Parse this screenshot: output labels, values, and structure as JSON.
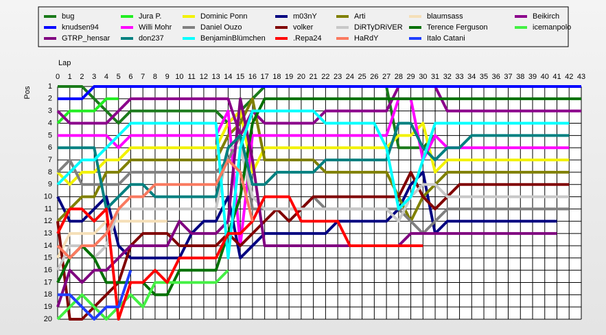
{
  "chart_data": {
    "type": "line",
    "x_label": "Lap",
    "y_label": "Pos",
    "x": [
      0,
      1,
      2,
      3,
      4,
      5,
      6,
      7,
      8,
      9,
      10,
      11,
      12,
      13,
      14,
      15,
      16,
      17,
      18,
      19,
      20,
      21,
      22,
      23,
      24,
      25,
      26,
      27,
      28,
      29,
      30,
      31,
      32,
      33,
      34,
      35,
      36,
      37,
      38,
      39,
      40,
      41,
      42,
      43
    ],
    "xlim": [
      0,
      43
    ],
    "xticks": [
      0,
      1,
      2,
      3,
      4,
      5,
      6,
      7,
      8,
      9,
      10,
      11,
      12,
      13,
      14,
      15,
      16,
      17,
      18,
      19,
      20,
      21,
      22,
      23,
      24,
      25,
      26,
      27,
      28,
      29,
      30,
      31,
      32,
      33,
      34,
      35,
      36,
      37,
      38,
      39,
      40,
      41,
      42,
      43
    ],
    "ylim": [
      1,
      20
    ],
    "yticks": [
      1,
      2,
      3,
      4,
      5,
      6,
      7,
      8,
      9,
      10,
      11,
      12,
      13,
      14,
      15,
      16,
      17,
      18,
      19,
      20
    ],
    "y_inverted": true,
    "grid": true,
    "series": [
      {
        "name": "bug",
        "color": "#1a7a1a",
        "values": [
          1,
          1,
          1,
          2,
          3,
          4,
          3,
          3,
          3,
          3,
          3,
          3,
          3,
          3,
          4,
          3,
          2,
          1,
          1,
          1,
          1,
          1,
          1,
          1,
          1,
          1,
          1,
          1,
          6,
          6,
          6,
          5,
          null,
          null,
          null,
          null,
          null,
          null,
          null,
          null,
          null,
          null,
          null,
          null
        ]
      },
      {
        "name": "Jura P.",
        "color": "#22ee22",
        "values": [
          4,
          3,
          3,
          3,
          2,
          2,
          null,
          null,
          null,
          null,
          null,
          null,
          null,
          null,
          null,
          null,
          null,
          null,
          null,
          null,
          null,
          null,
          null,
          null,
          null,
          null,
          null,
          null,
          null,
          null,
          null,
          null,
          null,
          null,
          null,
          null,
          null,
          null,
          null,
          null,
          null,
          null,
          null,
          null
        ]
      },
      {
        "name": "Dominic Ponn",
        "color": "#f2f200",
        "values": [
          8,
          9,
          8,
          8,
          7,
          7,
          6,
          6,
          6,
          6,
          6,
          6,
          6,
          6,
          4,
          3,
          8,
          6,
          6,
          6,
          6,
          6,
          6,
          6,
          6,
          6,
          6,
          6,
          5,
          5,
          4,
          8,
          7,
          7,
          7,
          7,
          7,
          7,
          7,
          7,
          7,
          7,
          7,
          null
        ]
      },
      {
        "name": "m03nY",
        "color": "#000080",
        "values": [
          10,
          12,
          12,
          11,
          10,
          14,
          15,
          15,
          15,
          15,
          15,
          13,
          12,
          12,
          10,
          15,
          14,
          13,
          13,
          13,
          13,
          13,
          13,
          12,
          12,
          12,
          12,
          12,
          11,
          9,
          8,
          13,
          12,
          12,
          12,
          12,
          12,
          12,
          12,
          12,
          12,
          12,
          null,
          null
        ]
      },
      {
        "name": "Arti",
        "color": "#808000",
        "values": [
          12,
          11,
          10,
          10,
          8,
          8,
          7,
          7,
          7,
          7,
          7,
          7,
          7,
          7,
          5,
          4,
          2,
          7,
          7,
          7,
          7,
          7,
          8,
          8,
          8,
          8,
          8,
          8,
          10,
          12,
          10,
          9,
          8,
          8,
          8,
          8,
          8,
          8,
          8,
          8,
          8,
          8,
          8,
          null
        ]
      },
      {
        "name": "blaumsass",
        "color": "#f5dfb8",
        "values": [
          15,
          13,
          13,
          13,
          12,
          12,
          12,
          12,
          12,
          12,
          null,
          null,
          null,
          null,
          null,
          null,
          null,
          null,
          null,
          null,
          null,
          null,
          null,
          null,
          null,
          null,
          null,
          null,
          null,
          null,
          null,
          null,
          null,
          null,
          null,
          null,
          null,
          null,
          null,
          null,
          null,
          null,
          null,
          null
        ]
      },
      {
        "name": "Beikirch",
        "color": "#8b008b",
        "values": [
          3,
          4,
          4,
          4,
          4,
          3,
          2,
          2,
          2,
          2,
          2,
          2,
          2,
          2,
          2,
          5,
          3,
          4,
          4,
          4,
          4,
          4,
          3,
          3,
          3,
          3,
          3,
          3,
          1,
          1,
          1,
          1,
          3,
          3,
          3,
          3,
          3,
          3,
          3,
          3,
          3,
          3,
          3,
          3
        ]
      },
      {
        "name": "knudsen94",
        "color": "#0000ff",
        "values": [
          2,
          2,
          2,
          1,
          1,
          1,
          1,
          1,
          1,
          1,
          1,
          1,
          1,
          1,
          1,
          1,
          1,
          1,
          1,
          1,
          1,
          1,
          1,
          1,
          1,
          1,
          1,
          1,
          1,
          1,
          1,
          1,
          1,
          1,
          1,
          1,
          1,
          1,
          1,
          1,
          1,
          1,
          1,
          1
        ]
      },
      {
        "name": "Willi Mohr",
        "color": "#ff00ff",
        "values": [
          5,
          5,
          5,
          5,
          5,
          6,
          5,
          5,
          5,
          5,
          5,
          5,
          5,
          5,
          3,
          14,
          5,
          5,
          5,
          5,
          5,
          5,
          5,
          5,
          5,
          5,
          5,
          5,
          2,
          2,
          7,
          5,
          6,
          6,
          6,
          6,
          6,
          6,
          6,
          6,
          6,
          6,
          6,
          null
        ]
      },
      {
        "name": "Daniel Ouzo",
        "color": "#808080",
        "values": [
          8,
          7,
          9,
          9,
          9,
          9,
          8,
          8,
          8,
          8,
          8,
          8,
          8,
          8,
          7,
          5,
          11,
          11,
          11,
          11,
          11,
          10,
          11,
          11,
          11,
          11,
          11,
          11,
          11,
          12,
          13,
          12,
          11,
          11,
          11,
          11,
          11,
          11,
          11,
          11,
          11,
          11,
          11,
          null
        ]
      },
      {
        "name": "volker",
        "color": "#800000",
        "values": [
          12,
          20,
          20,
          19,
          18,
          17,
          14,
          13,
          13,
          13,
          14,
          14,
          14,
          14,
          13,
          14,
          13,
          12,
          11,
          12,
          11,
          10,
          10,
          10,
          10,
          10,
          10,
          10,
          10,
          8,
          10,
          11,
          10,
          9,
          9,
          9,
          9,
          9,
          9,
          9,
          9,
          9,
          9,
          null
        ]
      },
      {
        "name": "DiRTyDRiVER",
        "color": "#c8c8c8",
        "values": [
          16,
          14,
          14,
          15,
          14,
          11,
          11,
          11,
          11,
          11,
          11,
          11,
          11,
          11,
          6,
          6,
          10,
          11,
          11,
          11,
          11,
          11,
          11,
          11,
          11,
          11,
          11,
          11,
          12,
          10,
          9,
          9,
          10,
          10,
          10,
          10,
          10,
          10,
          10,
          10,
          10,
          10,
          10,
          null
        ]
      },
      {
        "name": "Terence Ferguson",
        "color": "#007000",
        "values": [
          17,
          15,
          14,
          15,
          17,
          17,
          17,
          17,
          18,
          18,
          16,
          16,
          16,
          16,
          13,
          10,
          4,
          2,
          2,
          2,
          2,
          2,
          2,
          2,
          2,
          2,
          2,
          2,
          2,
          2,
          2,
          2,
          2,
          2,
          2,
          2,
          2,
          2,
          2,
          2,
          2,
          2,
          2,
          2
        ]
      },
      {
        "name": "icemanpolo",
        "color": "#44f044",
        "values": [
          20,
          19,
          18,
          19,
          20,
          19,
          18,
          19,
          17,
          17,
          17,
          17,
          17,
          17,
          16,
          null,
          null,
          null,
          null,
          null,
          null,
          null,
          null,
          null,
          null,
          null,
          null,
          null,
          null,
          null,
          null,
          null,
          null,
          null,
          null,
          null,
          null,
          null,
          null,
          null,
          null,
          null,
          null,
          null
        ]
      },
      {
        "name": "GTRP_hensar",
        "color": "#800080",
        "values": [
          19,
          16,
          17,
          16,
          16,
          15,
          14,
          14,
          14,
          14,
          12,
          13,
          13,
          13,
          12,
          2,
          7,
          14,
          14,
          14,
          14,
          14,
          14,
          14,
          14,
          14,
          14,
          14,
          14,
          13,
          13,
          13,
          13,
          13,
          13,
          13,
          13,
          13,
          13,
          13,
          13,
          13,
          null,
          null
        ]
      },
      {
        "name": "don237",
        "color": "#008080",
        "values": [
          6,
          6,
          6,
          6,
          11,
          10,
          9,
          9,
          10,
          10,
          10,
          10,
          10,
          10,
          6,
          5,
          9,
          9,
          8,
          8,
          8,
          8,
          7,
          7,
          7,
          7,
          7,
          7,
          4,
          4,
          6,
          7,
          6,
          6,
          5,
          5,
          5,
          5,
          5,
          5,
          5,
          5,
          5,
          null
        ]
      },
      {
        "name": "BenjaminBlümchen",
        "color": "#00ffff",
        "values": [
          9,
          8,
          7,
          7,
          6,
          5,
          4,
          4,
          4,
          4,
          4,
          4,
          4,
          4,
          15,
          6,
          3,
          3,
          3,
          3,
          3,
          3,
          4,
          4,
          4,
          4,
          4,
          6,
          11,
          10,
          7,
          4,
          4,
          4,
          4,
          4,
          4,
          4,
          4,
          4,
          4,
          4,
          4,
          null
        ]
      },
      {
        "name": ".Repa24",
        "color": "#ff0000",
        "values": [
          13,
          11,
          11,
          12,
          11,
          20,
          17,
          17,
          16,
          17,
          15,
          15,
          15,
          15,
          13,
          13,
          12,
          10,
          10,
          10,
          12,
          12,
          12,
          12,
          14,
          14,
          14,
          14,
          14,
          14,
          14,
          null,
          null,
          null,
          null,
          null,
          null,
          null,
          null,
          null,
          null,
          null,
          null,
          null
        ]
      },
      {
        "name": "HaRdY",
        "color": "#fa7a60",
        "values": [
          14,
          15,
          14,
          14,
          13,
          11,
          10,
          10,
          9,
          9,
          9,
          9,
          9,
          9,
          7,
          8,
          12,
          null,
          null,
          null,
          null,
          null,
          null,
          null,
          null,
          null,
          null,
          null,
          null,
          null,
          null,
          null,
          null,
          null,
          null,
          null,
          null,
          null,
          null,
          null,
          null,
          null,
          null,
          null
        ]
      },
      {
        "name": "Italo Catani",
        "color": "#1f3fff",
        "values": [
          18,
          18,
          19,
          20,
          19,
          19,
          16,
          null,
          null,
          null,
          null,
          null,
          null,
          null,
          null,
          null,
          null,
          null,
          null,
          null,
          null,
          null,
          null,
          null,
          null,
          null,
          null,
          null,
          null,
          null,
          null,
          null,
          null,
          null,
          null,
          null,
          null,
          null,
          null,
          null,
          null,
          null,
          null,
          null
        ]
      }
    ]
  }
}
